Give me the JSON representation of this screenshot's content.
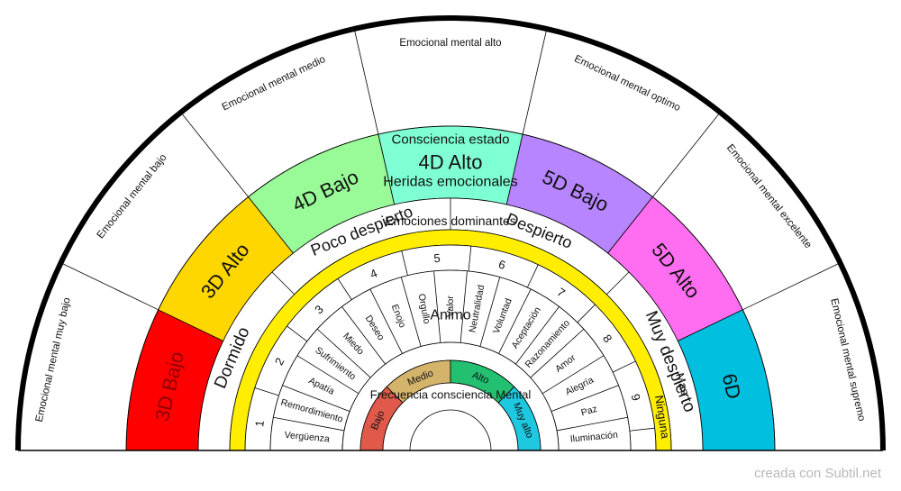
{
  "outer_labels": [
    "Emocional mental muy bajo",
    "Emocional mental bajo",
    "Emocional mental medio",
    "Emocional mental alto",
    "Emocional mental optimo",
    "Emocional mental excelente",
    "Emocional mental supremo"
  ],
  "outer_bands": [
    {
      "label": "3D Bajo",
      "color": "#ff0000",
      "text_color": "#8b0000"
    },
    {
      "label": "3D Alto",
      "color": "#ffd700",
      "text_color": "#111111"
    },
    {
      "label": "4D Bajo",
      "color": "#98fb98",
      "text_color": "#111111"
    },
    {
      "label": "4D Alto",
      "color": "#7fffd4",
      "text_color": "#111111"
    },
    {
      "label": "5D Bajo",
      "color": "#b685ff",
      "text_color": "#111111"
    },
    {
      "label": "5D Alto",
      "color": "#ff6ef0",
      "text_color": "#111111"
    },
    {
      "label": "6D",
      "color": "#00bfdf",
      "text_color": "#111111"
    }
  ],
  "consciencia_title": "Consciencia estado",
  "consciencia_states": [
    "Dormido",
    "Poco despierto",
    "Despierto",
    "Muy despierto"
  ],
  "heridas_title": "Heridas emocionales",
  "heridas_color": "#ffee00",
  "numbers": [
    "1",
    "2",
    "3",
    "4",
    "5",
    "6",
    "7",
    "8",
    "9"
  ],
  "emociones_title": "Emociones dominantes",
  "emociones": [
    "Vergüenza",
    "Remordimiento",
    "Apatía",
    "Sufrimiento",
    "Miedo",
    "Deseo",
    "Enojo",
    "Orgullo",
    "Valor",
    "Neutralidad",
    "Voluntad",
    "Aceptación",
    "Razonamiento",
    "Amor",
    "Alegría",
    "Paz",
    "Iluminación"
  ],
  "side_labels": [
    "Mas",
    "Ninguna"
  ],
  "animo_title": "Animo",
  "animo_bands": [
    {
      "label": "Bajo",
      "color": "#e0594a"
    },
    {
      "label": "Medio",
      "color": "#d4b46a"
    },
    {
      "label": "Alto",
      "color": "#22c070"
    },
    {
      "label": "Muy alto",
      "color": "#1ec8e0"
    }
  ],
  "center_label": "Frecuencia consciencia Mental",
  "credit": "creada con Subtil.net"
}
